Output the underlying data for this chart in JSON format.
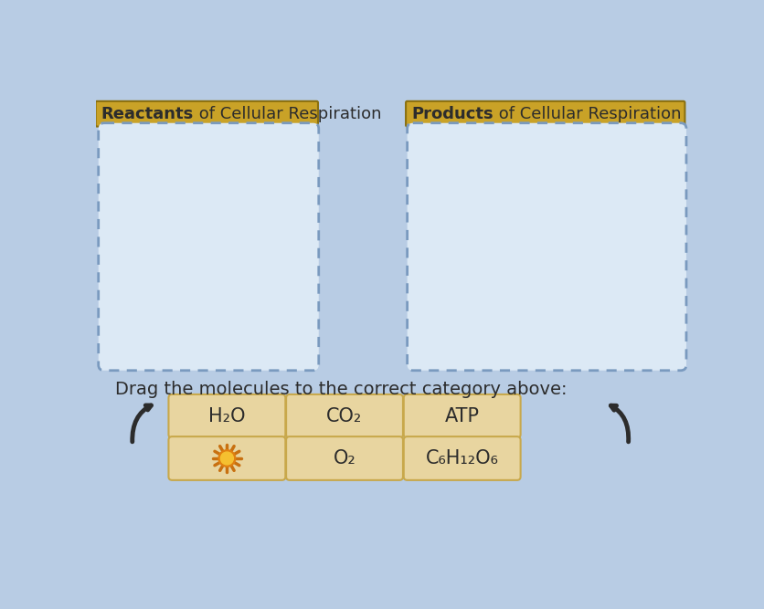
{
  "bg_color": "#b8cce4",
  "header_left_bold": "Reactants",
  "header_left_normal": " of Cellular Respiration",
  "header_right_bold": "Products",
  "header_right_normal": " of Cellular Respiration",
  "header_bg_color": "#c9a227",
  "header_text_color": "#2c2c2c",
  "box_bg_color": "#dce9f5",
  "box_border_color": "#7a9abf",
  "drag_text": "Drag the molecules to the correct category above:",
  "drag_text_color": "#2c2c2c",
  "button_bg_color": "#e8d5a0",
  "button_border_color": "#c8a84b",
  "button_text_color": "#2c2c2c",
  "buttons_row1": [
    "H₂O",
    "CO₂",
    "ATP"
  ],
  "buttons_row2_text": [
    "",
    "O₂",
    "C₆H₁₂O₆"
  ],
  "has_sun_icon": true,
  "arrow_color": "#2c2c2c"
}
